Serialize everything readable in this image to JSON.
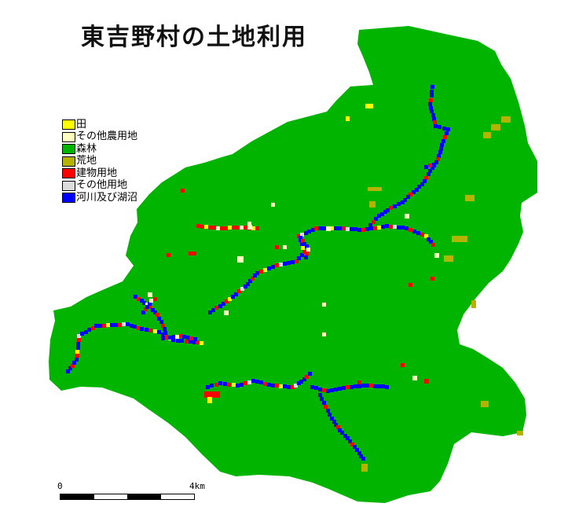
{
  "title": "東吉野村の土地利用",
  "legend": [
    {
      "label": "田",
      "color": "#ffff00"
    },
    {
      "label": "その他農用地",
      "color": "#ffffc0"
    },
    {
      "label": "森林",
      "color": "#00b400"
    },
    {
      "label": "荒地",
      "color": "#b4b400"
    },
    {
      "label": "建物用地",
      "color": "#ff0000"
    },
    {
      "label": "その他用地",
      "color": "#dcdcdc"
    },
    {
      "label": "河川及び湖沼",
      "color": "#0000ff"
    }
  ],
  "scale": {
    "start_label": "0",
    "end_label": "4km"
  },
  "colors": {
    "forest": "#00b400",
    "river": "#0000ff",
    "building": "#ff0000",
    "paddy": "#ffff00",
    "farmland": "#ffffc0",
    "wasteland": "#b4b400",
    "other": "#dcdcdc"
  }
}
